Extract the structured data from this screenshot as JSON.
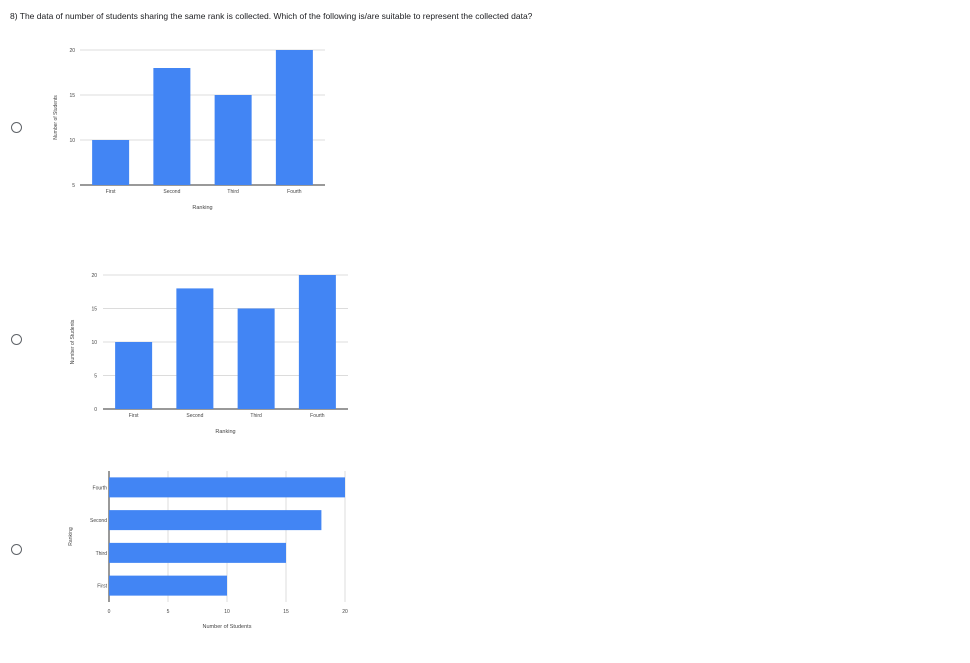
{
  "question": "8) The data of number of students sharing the same rank is collected. Which of the following is/are suitable to represent the collected data?",
  "colors": {
    "bar": "#4285f4",
    "grid": "#dcdcdc",
    "axis": "#333333",
    "text": "#444444"
  },
  "options": [
    {
      "name": "option-a-radio",
      "selected": false
    },
    {
      "name": "option-b-radio",
      "selected": false
    },
    {
      "name": "option-c-radio",
      "selected": false
    }
  ],
  "chart_data": [
    {
      "type": "bar",
      "categories": [
        "First",
        "Second",
        "Third",
        "Fourth"
      ],
      "values": [
        10,
        18,
        15,
        20
      ],
      "xlabel": "Ranking",
      "ylabel": "Number of Students",
      "ylim": [
        5,
        20
      ],
      "yticks": [
        5,
        10,
        15,
        20
      ],
      "grid": true
    },
    {
      "type": "bar",
      "categories": [
        "First",
        "Second",
        "Third",
        "Fourth"
      ],
      "values": [
        10,
        18,
        15,
        20
      ],
      "xlabel": "Ranking",
      "ylabel": "Number of Students",
      "ylim": [
        0,
        20
      ],
      "yticks": [
        0,
        5,
        10,
        15,
        20
      ],
      "grid": true
    },
    {
      "type": "bar",
      "orientation": "horizontal",
      "categories": [
        "Fourth",
        "Second",
        "Third",
        "First"
      ],
      "values": [
        20,
        18,
        15,
        10
      ],
      "xlabel": "Number of Students",
      "ylabel": "Ranking",
      "xlim": [
        0,
        20
      ],
      "xticks": [
        0,
        5,
        10,
        15,
        20
      ],
      "grid": true
    }
  ]
}
